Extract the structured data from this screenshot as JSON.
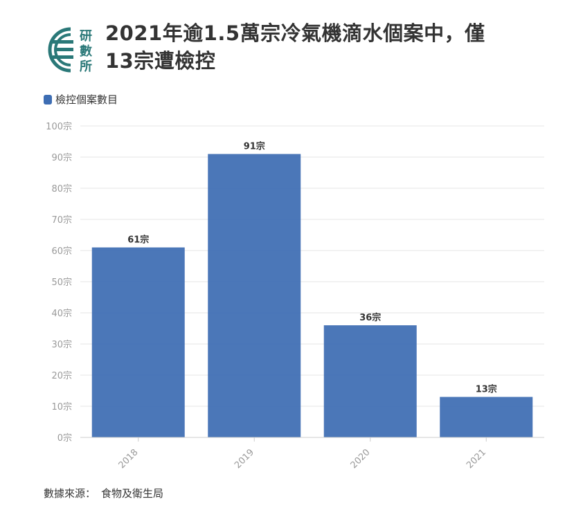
{
  "header": {
    "logo_text": [
      "研",
      "數",
      "所"
    ],
    "title_line1": "2021年逾1.5萬宗冷氣機滴水個案中，僅",
    "title_line2": "13宗遭檢控"
  },
  "colors": {
    "bar": "#3d6db3",
    "logo": "#2a7878",
    "grid": "#e6e6e6",
    "axis_text": "#999999"
  },
  "chart_data": {
    "type": "bar",
    "categories": [
      "2018",
      "2019",
      "2020",
      "2021"
    ],
    "series": [
      {
        "name": "檢控個案數目",
        "values": [
          61,
          91,
          36,
          13
        ]
      }
    ],
    "value_suffix": "宗",
    "ylim": [
      0,
      100
    ],
    "yticks": [
      0,
      10,
      20,
      30,
      40,
      50,
      60,
      70,
      80,
      90,
      100
    ],
    "ytick_labels": [
      "0宗",
      "10宗",
      "20宗",
      "30宗",
      "40宗",
      "50宗",
      "60宗",
      "70宗",
      "80宗",
      "90宗",
      "100宗"
    ],
    "data_labels": [
      "61宗",
      "91宗",
      "36宗",
      "13宗"
    ],
    "grid": true,
    "legend": "top-left"
  },
  "footer": {
    "source_label": "數據來源：",
    "source_value": "食物及衛生局"
  }
}
